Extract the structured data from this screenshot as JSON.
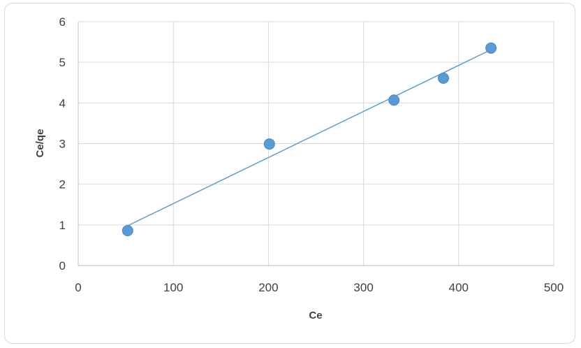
{
  "chart_data": {
    "type": "scatter",
    "title": "",
    "xlabel": "Ce",
    "ylabel": "Ce/qe",
    "xlim": [
      0,
      500
    ],
    "ylim": [
      0,
      6
    ],
    "x_ticks": [
      0,
      100,
      200,
      300,
      400,
      500
    ],
    "y_ticks": [
      0,
      1,
      2,
      3,
      4,
      5,
      6
    ],
    "grid": true,
    "legend": "none",
    "series": [
      {
        "points": [
          {
            "x": 52,
            "y": 0.86
          },
          {
            "x": 201,
            "y": 2.99
          },
          {
            "x": 332,
            "y": 4.07
          },
          {
            "x": 384,
            "y": 4.61
          },
          {
            "x": 434,
            "y": 5.35
          }
        ],
        "trendline": {
          "type": "linear",
          "x": [
            52,
            434
          ],
          "y": [
            0.98,
            5.31
          ]
        }
      }
    ],
    "colors": {
      "marker": "#5b9bd5",
      "trendline": "#5b9bd5",
      "grid": "#d9d9d9",
      "axis": "#bfbfbf"
    }
  }
}
